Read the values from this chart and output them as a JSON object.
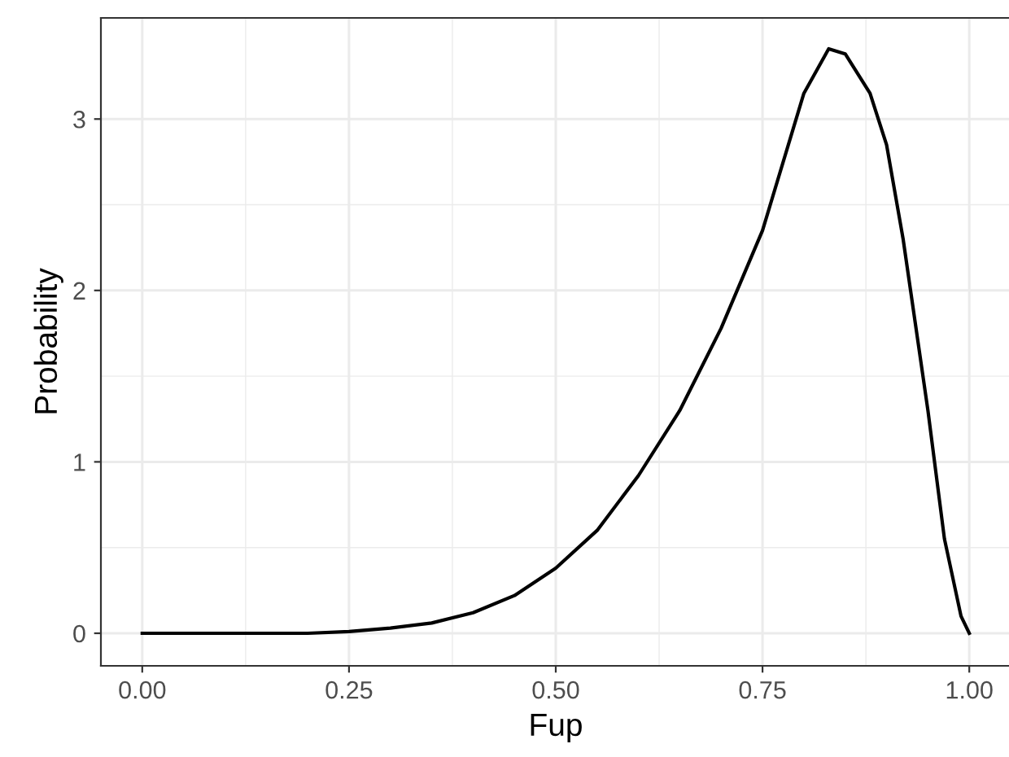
{
  "chart_data": {
    "type": "line",
    "xlabel": "Fup",
    "ylabel": "Probability",
    "x": [
      0,
      0.05,
      0.1,
      0.15,
      0.2,
      0.25,
      0.3,
      0.35,
      0.4,
      0.45,
      0.5,
      0.55,
      0.6,
      0.65,
      0.7,
      0.75,
      0.8,
      0.83,
      0.85,
      0.88,
      0.9,
      0.92,
      0.95,
      0.97,
      0.99,
      1.0
    ],
    "series": [
      {
        "color": "#000000",
        "values": [
          0,
          0,
          0,
          0,
          0,
          0.01,
          0.03,
          0.06,
          0.12,
          0.22,
          0.38,
          0.6,
          0.92,
          1.3,
          1.78,
          2.35,
          3.15,
          3.41,
          3.38,
          3.15,
          2.85,
          2.3,
          1.3,
          0.55,
          0.1,
          0
        ]
      }
    ],
    "xlim": [
      -0.05,
      1.05
    ],
    "ylim": [
      -0.19,
      3.59
    ],
    "xticks": [
      {
        "value": 0,
        "label": "0.00"
      },
      0.25,
      {
        "value": 0.5,
        "label": "0.50"
      },
      0.75,
      {
        "value": 1,
        "label": "1.00"
      }
    ],
    "yticks": [
      0,
      1,
      2,
      3
    ],
    "grid": true,
    "marker": "none",
    "line_style": "solid"
  }
}
